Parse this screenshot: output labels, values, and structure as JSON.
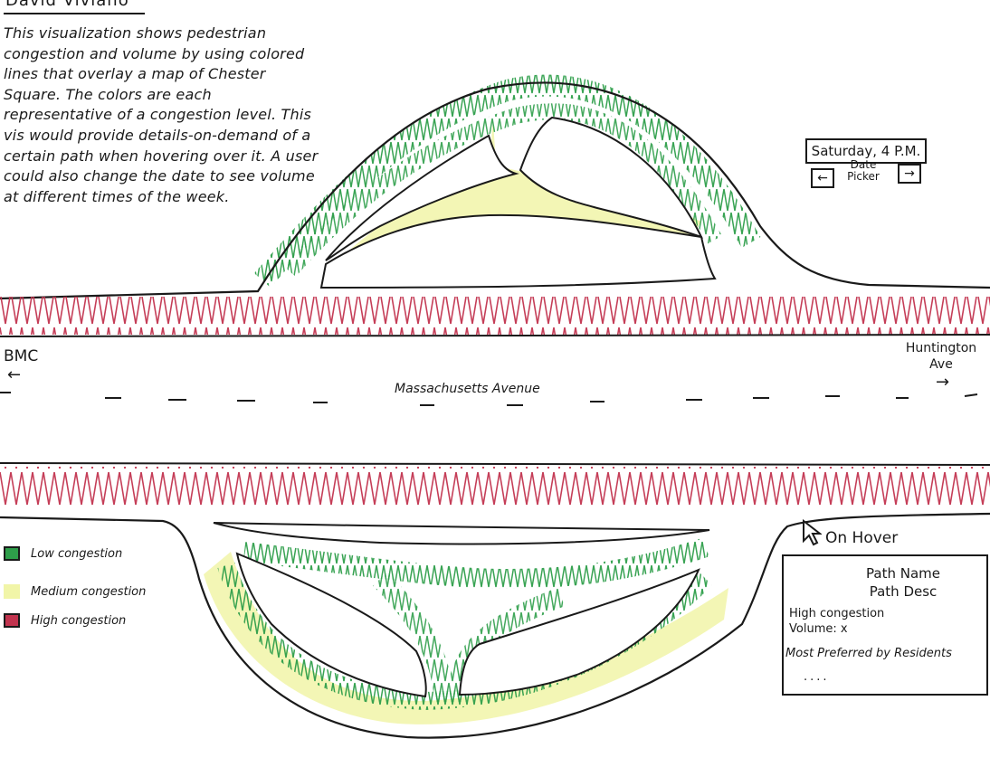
{
  "author": "David Viviano",
  "description": "This visualization shows pedestrian congestion and volume by using colored lines that overlay a map of Chester Square. The colors are each representative of a congestion level. This vis would provide details-on-demand of a certain path when hovering over it. A user could also change the date to see volume at different times of the week.",
  "date_picker": {
    "value": "Saturday, 4 P.M.",
    "label": "Date Picker",
    "prev_icon": "left-arrow-icon",
    "next_icon": "right-arrow-icon"
  },
  "map": {
    "street_name": "Massachusetts Avenue",
    "left_direction": "BMC",
    "right_direction": "Huntington Ave"
  },
  "legend": [
    {
      "label": "Low congestion",
      "color": "#2e9e4a"
    },
    {
      "label": "Medium congestion",
      "color": "#f1f5a8"
    },
    {
      "label": "High congestion",
      "color": "#c2344f"
    }
  ],
  "hover": {
    "label": "On Hover",
    "cursor_icon": "pointer-cursor-icon",
    "tooltip": {
      "name": "Path Name",
      "desc": "Path Desc",
      "level": "High congestion",
      "volume": "Volume: x",
      "preference": "Most Preferred by Residents",
      "more": "...."
    }
  }
}
